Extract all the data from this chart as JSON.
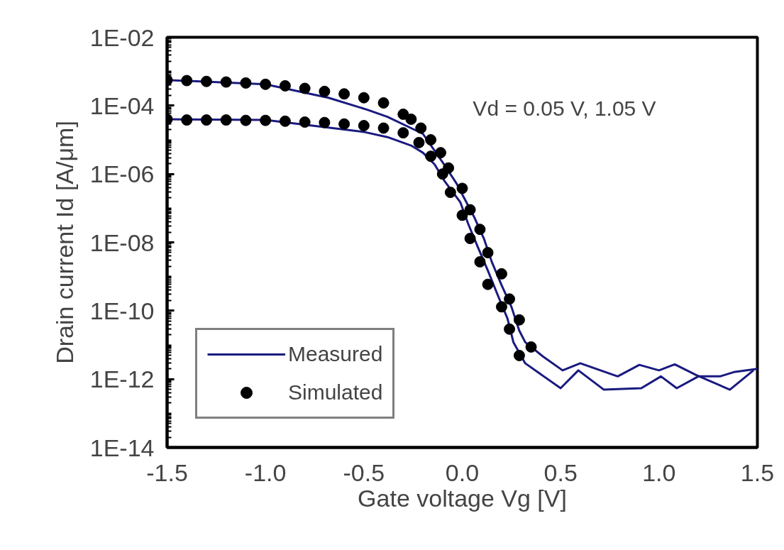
{
  "chart_data": {
    "type": "line",
    "xlabel": "Gate voltage Vg [V]",
    "ylabel": "Drain current Id [A/μm]",
    "annotations": [
      "Vd = 0.05 V, 1.05 V"
    ],
    "log": "y",
    "grid": false,
    "legend": "bottom left",
    "xlim": [
      -1.5,
      1.5
    ],
    "ylim": [
      1e-14,
      0.01
    ],
    "xticks": [
      {
        "value": -1.5,
        "label": "-1.5"
      },
      {
        "value": -1.0,
        "label": "-1.0"
      },
      {
        "value": -0.5,
        "label": "-0.5"
      },
      {
        "value": 0.0,
        "label": "0.0"
      },
      {
        "value": 0.5,
        "label": "0.5"
      },
      {
        "value": 1.0,
        "label": "1.0"
      },
      {
        "value": 1.5,
        "label": "1.5"
      }
    ],
    "yticks": [
      {
        "value": 0.01,
        "label": "1E-02"
      },
      {
        "value": 0.0001,
        "label": "1E-04"
      },
      {
        "value": 1e-06,
        "label": "1E-06"
      },
      {
        "value": 1e-08,
        "label": "1E-08"
      },
      {
        "value": 1e-10,
        "label": "1E-10"
      },
      {
        "value": 1e-12,
        "label": "1E-12"
      },
      {
        "value": 1e-14,
        "label": "1E-14"
      }
    ],
    "series": [
      {
        "name": "Measured",
        "marker": "none",
        "line_style": "solid",
        "color": "#1a1a80",
        "x": [
          -1.5,
          -1.0,
          -0.68,
          -0.48,
          -0.38,
          -0.26,
          -0.2,
          -0.1,
          -0.03,
          0.06,
          0.11,
          0.15,
          0.2,
          0.25,
          0.29,
          0.32,
          0.41,
          0.51,
          0.6,
          0.79,
          0.9,
          1.0,
          1.08,
          1.19,
          1.36,
          1.48
        ],
        "values": [
          0.00056,
          0.00042,
          0.00017,
          7.5e-05,
          4.7e-05,
          2.2e-05,
          1.5e-05,
          2.2e-06,
          5.4e-07,
          5.6e-08,
          1.3e-08,
          2.7e-09,
          5.6e-10,
          1.3e-10,
          2.6e-11,
          1.2e-11,
          4.6e-12,
          1.8e-12,
          2.9e-12,
          1.2e-12,
          2.6e-12,
          1.8e-12,
          2.7e-12,
          1.3e-12,
          4.9e-13,
          1.8e-12
        ]
      },
      {
        "marker": "none",
        "line_style": "solid",
        "color": "#1a1a80",
        "x": [
          -1.5,
          -1.0,
          -0.5,
          -0.38,
          -0.26,
          -0.2,
          -0.14,
          -0.09,
          -0.01,
          0.03,
          0.08,
          0.13,
          0.18,
          0.23,
          0.26,
          0.32,
          0.5,
          0.59,
          0.72,
          0.91,
          1.01,
          1.09,
          1.2,
          1.31,
          1.38,
          1.5
        ],
        "values": [
          4e-05,
          3.8e-05,
          1.7e-05,
          1.2e-05,
          6.8e-06,
          4.2e-06,
          1.9e-06,
          6.2e-07,
          1.5e-07,
          3.5e-08,
          7.1e-09,
          1.5e-09,
          2.9e-10,
          5.9e-11,
          1.2e-11,
          2.9e-12,
          5.4e-13,
          1.8e-12,
          4.9e-13,
          5.4e-13,
          1.2e-12,
          5.4e-13,
          1.2e-12,
          1.2e-12,
          1.6e-12,
          2e-12
        ]
      },
      {
        "name": "Simulated",
        "type": "scatter",
        "marker": "circle",
        "color": "#000000",
        "x": [
          -1.5,
          -1.4,
          -1.3,
          -1.2,
          -1.1,
          -1.0,
          -0.9,
          -0.8,
          -0.7,
          -0.6,
          -0.5,
          -0.4,
          -0.3,
          -0.26,
          -0.21,
          -0.16,
          -0.11,
          -0.07,
          0.0,
          0.04,
          0.09,
          0.13,
          0.2,
          0.24,
          0.29,
          0.35
        ],
        "values": [
          0.00056,
          0.00054,
          0.00051,
          0.00049,
          0.00046,
          0.00042,
          0.00038,
          0.00032,
          0.00026,
          0.00022,
          0.00017,
          0.00012,
          5.6e-05,
          4e-05,
          2.2e-05,
          1e-05,
          4.2e-06,
          1.5e-06,
          3.8e-07,
          9e-08,
          2.4e-08,
          5e-09,
          1.2e-09,
          2.2e-10,
          5.4e-11,
          8.7e-12
        ]
      },
      {
        "type": "scatter",
        "marker": "circle",
        "color": "#000000",
        "x": [
          -1.5,
          -1.4,
          -1.3,
          -1.2,
          -1.1,
          -1.0,
          -0.9,
          -0.8,
          -0.7,
          -0.6,
          -0.5,
          -0.4,
          -0.3,
          -0.22,
          -0.16,
          -0.1,
          -0.06,
          0.0,
          0.04,
          0.09,
          0.13,
          0.2,
          0.24,
          0.29
        ],
        "values": [
          4e-05,
          3.8e-05,
          3.8e-05,
          3.8e-05,
          3.7e-05,
          3.7e-05,
          3.5e-05,
          3.3e-05,
          3.2e-05,
          2.9e-05,
          2.6e-05,
          2.2e-05,
          1.6e-05,
          8.3e-06,
          3.3e-06,
          1e-06,
          2.9e-07,
          6.2e-08,
          1.3e-08,
          2.7e-09,
          5.9e-10,
          1.3e-10,
          2.9e-11,
          4.9e-12
        ]
      }
    ]
  }
}
